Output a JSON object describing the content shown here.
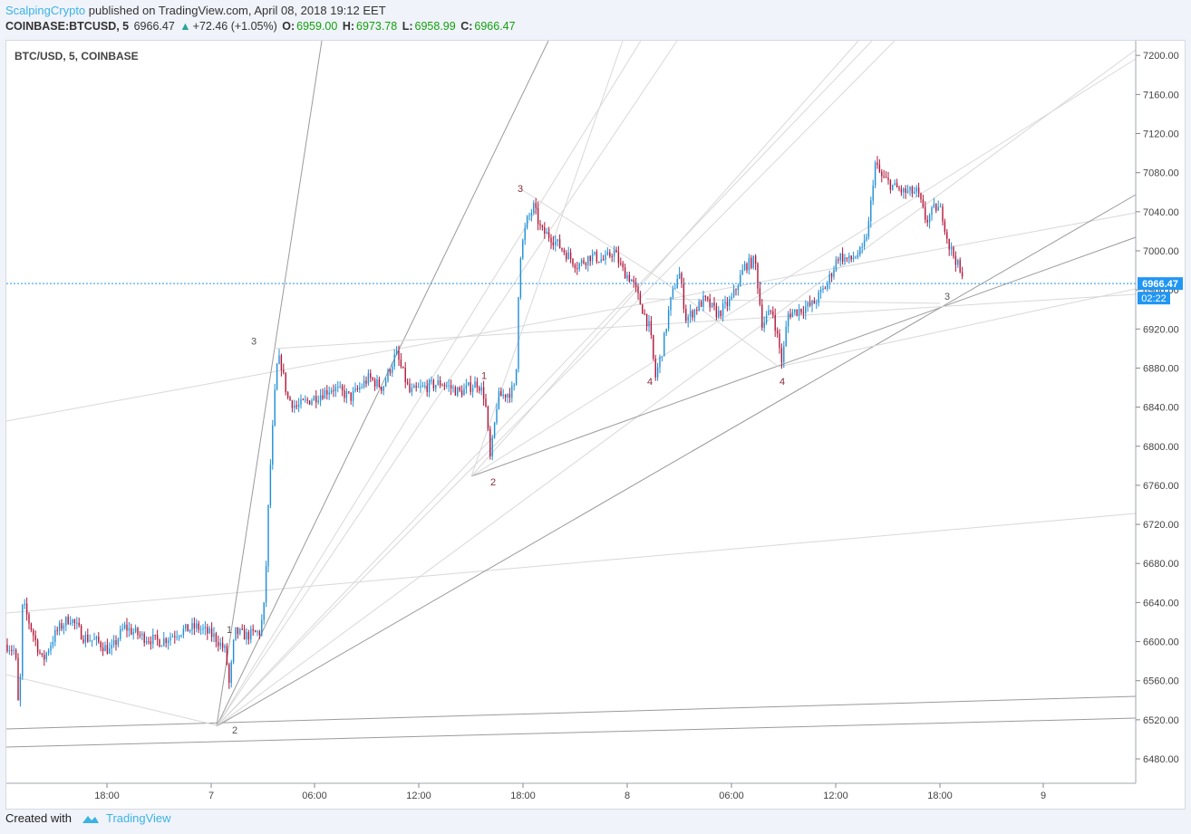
{
  "header": {
    "author": "ScalpingCrypto",
    "published_text": "published on TradingView.com, April 08, 2018 19:12 EET",
    "symbol": "COINBASE:BTCUSD, 5",
    "last": "6966.47",
    "change": "+72.46 (+1.05%)",
    "o_label": "O:",
    "o_value": "6959.00",
    "h_label": "H:",
    "h_value": "6973.78",
    "l_label": "L:",
    "l_value": "6958.99",
    "c_label": "C:",
    "c_value": "6966.47"
  },
  "legend": "BTC/USD, 5, COINBASE",
  "price_badge": "6966.47",
  "time_badge": "02:22",
  "footer": {
    "created_with": "Created with",
    "brand": "TradingView"
  },
  "colors": {
    "up": "#1f8fd6",
    "down": "#b0173a",
    "line": "#9a9a9a",
    "badge": "#2196f3",
    "accent": "#3bb3e4"
  },
  "chart_data": {
    "type": "candlestick",
    "symbol": "BTC/USD",
    "interval": "5",
    "exchange": "COINBASE",
    "ylim": [
      6455,
      7215
    ],
    "x_ticks": [
      "18:00",
      "7",
      "06:00",
      "12:00",
      "18:00",
      "8",
      "06:00",
      "12:00",
      "18:00",
      "9"
    ],
    "y_ticks": [
      6480,
      6520,
      6560,
      6600,
      6640,
      6680,
      6720,
      6760,
      6800,
      6840,
      6880,
      6920,
      6960,
      7000,
      7040,
      7080,
      7120,
      7160,
      7200
    ],
    "last_price": 6966.47,
    "price_path": [
      [
        0,
        6597
      ],
      [
        10,
        6590
      ],
      [
        14,
        6520
      ],
      [
        18,
        6640
      ],
      [
        25,
        6620
      ],
      [
        40,
        6580
      ],
      [
        55,
        6610
      ],
      [
        70,
        6625
      ],
      [
        85,
        6605
      ],
      [
        100,
        6600
      ],
      [
        115,
        6590
      ],
      [
        130,
        6615
      ],
      [
        150,
        6605
      ],
      [
        170,
        6600
      ],
      [
        190,
        6610
      ],
      [
        210,
        6615
      ],
      [
        230,
        6605
      ],
      [
        242,
        6590
      ],
      [
        246,
        6555
      ],
      [
        252,
        6610
      ],
      [
        265,
        6606
      ],
      [
        280,
        6610
      ],
      [
        285,
        6640
      ],
      [
        290,
        6760
      ],
      [
        298,
        6880
      ],
      [
        302,
        6890
      ],
      [
        310,
        6850
      ],
      [
        320,
        6840
      ],
      [
        340,
        6850
      ],
      [
        360,
        6860
      ],
      [
        380,
        6850
      ],
      [
        400,
        6870
      ],
      [
        415,
        6860
      ],
      [
        430,
        6895
      ],
      [
        445,
        6855
      ],
      [
        460,
        6860
      ],
      [
        480,
        6865
      ],
      [
        500,
        6855
      ],
      [
        520,
        6865
      ],
      [
        528,
        6850
      ],
      [
        534,
        6785
      ],
      [
        542,
        6850
      ],
      [
        555,
        6855
      ],
      [
        562,
        6860
      ],
      [
        566,
        6990
      ],
      [
        574,
        7030
      ],
      [
        582,
        7045
      ],
      [
        590,
        7020
      ],
      [
        600,
        7015
      ],
      [
        615,
        7000
      ],
      [
        630,
        6985
      ],
      [
        645,
        6995
      ],
      [
        660,
        6990
      ],
      [
        670,
        7000
      ],
      [
        680,
        6980
      ],
      [
        690,
        6970
      ],
      [
        700,
        6945
      ],
      [
        710,
        6920
      ],
      [
        716,
        6870
      ],
      [
        724,
        6900
      ],
      [
        732,
        6945
      ],
      [
        742,
        6980
      ],
      [
        750,
        6930
      ],
      [
        760,
        6940
      ],
      [
        770,
        6950
      ],
      [
        785,
        6935
      ],
      [
        800,
        6950
      ],
      [
        815,
        6985
      ],
      [
        826,
        6990
      ],
      [
        834,
        6925
      ],
      [
        845,
        6940
      ],
      [
        856,
        6885
      ],
      [
        862,
        6935
      ],
      [
        875,
        6940
      ],
      [
        890,
        6945
      ],
      [
        905,
        6965
      ],
      [
        918,
        6995
      ],
      [
        930,
        6990
      ],
      [
        945,
        7000
      ],
      [
        952,
        7030
      ],
      [
        958,
        7090
      ],
      [
        966,
        7075
      ],
      [
        980,
        7065
      ],
      [
        990,
        7060
      ],
      [
        1005,
        7060
      ],
      [
        1015,
        7030
      ],
      [
        1025,
        7045
      ],
      [
        1032,
        7040
      ],
      [
        1040,
        7005
      ],
      [
        1048,
        6990
      ],
      [
        1056,
        6966
      ]
    ],
    "wave_labels": [
      {
        "label": "1",
        "price": 6609,
        "x": 246
      },
      {
        "label": "2",
        "price": 6506,
        "x": 252
      },
      {
        "label": "3",
        "price": 6904,
        "x": 273
      },
      {
        "label": "1",
        "price": 6869,
        "x": 527
      },
      {
        "label": "2",
        "price": 6760,
        "x": 537
      },
      {
        "label": "3",
        "price": 7060,
        "x": 567
      },
      {
        "label": "4",
        "price": 6863,
        "x": 710
      },
      {
        "label": "4",
        "price": 6863,
        "x": 856
      },
      {
        "label": "3",
        "price": 6950,
        "x": 1038
      }
    ]
  }
}
